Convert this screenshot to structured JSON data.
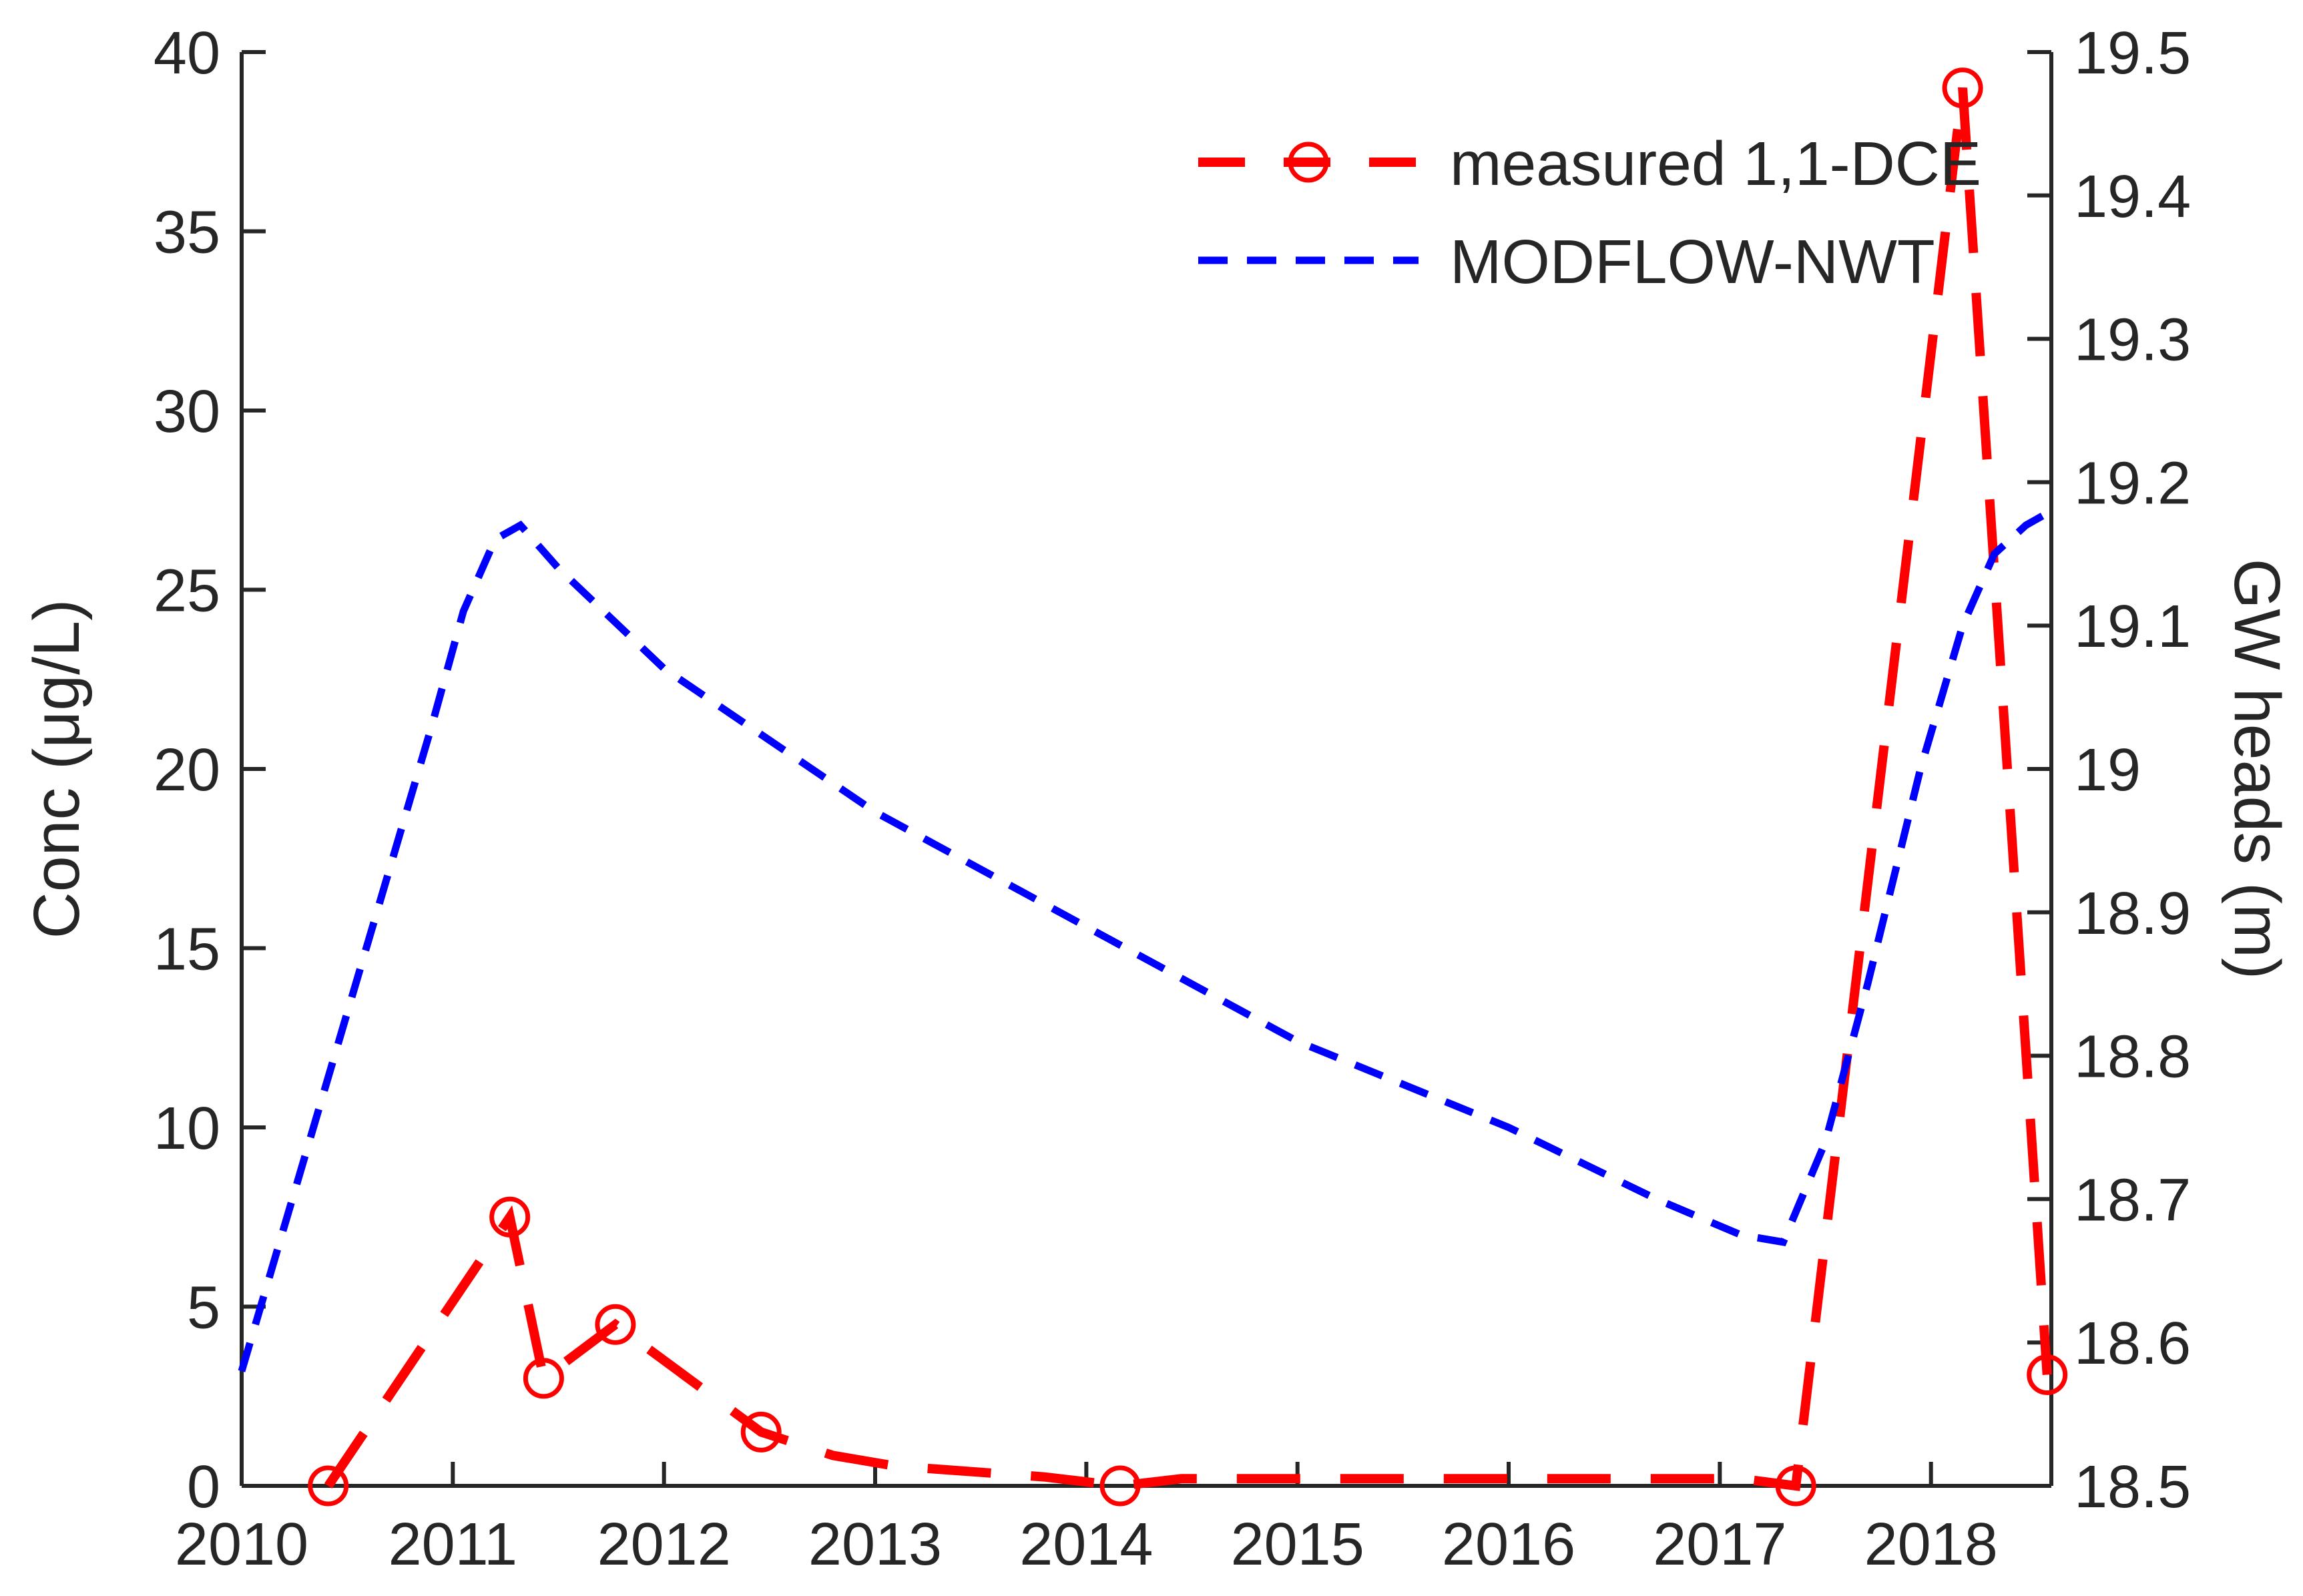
{
  "chart_data": {
    "type": "line",
    "title": "",
    "x_axis": {
      "label": "",
      "range": [
        2010,
        2018.57
      ],
      "ticks": [
        2010,
        2011,
        2012,
        2013,
        2014,
        2015,
        2016,
        2017,
        2018
      ],
      "tick_labels": [
        "2010",
        "2011",
        "2012",
        "2013",
        "2014",
        "2015",
        "2016",
        "2017",
        "2018"
      ]
    },
    "y_axis_left": {
      "label": "Conc (μg/L)",
      "range": [
        0,
        40
      ],
      "ticks": [
        0,
        5,
        10,
        15,
        20,
        25,
        30,
        35,
        40
      ],
      "tick_labels": [
        "0",
        "5",
        "10",
        "15",
        "20",
        "25",
        "30",
        "35",
        "40"
      ]
    },
    "y_axis_right": {
      "label": "GW heads (m)",
      "range": [
        18.5,
        19.5
      ],
      "ticks": [
        18.5,
        18.6,
        18.7,
        18.8,
        18.9,
        19.0,
        19.1,
        19.2,
        19.3,
        19.4,
        19.5
      ],
      "tick_labels": [
        "18.5",
        "18.6",
        "18.7",
        "18.8",
        "18.9",
        "19",
        "19.1",
        "19.2",
        "19.3",
        "19.4",
        "19.5"
      ]
    },
    "series": [
      {
        "name": "measured 1,1-DCE",
        "axis": "left",
        "color": "#ff0000",
        "line_style": "dashed",
        "marker": "circle",
        "points": [
          [
            2010.41,
            0
          ],
          [
            2011.27,
            7.5
          ],
          [
            2011.43,
            3.0
          ],
          [
            2011.77,
            4.5
          ],
          [
            2012.46,
            1.5
          ],
          [
            2014.16,
            0
          ],
          [
            2017.36,
            0
          ],
          [
            2018.15,
            39
          ],
          [
            2018.55,
            3.1
          ]
        ],
        "draw_path": [
          [
            2010.41,
            0
          ],
          [
            2011.27,
            7.5
          ],
          [
            2011.43,
            3.0
          ],
          [
            2011.77,
            4.5
          ],
          [
            2012.46,
            1.5
          ],
          [
            2012.8,
            0.85
          ],
          [
            2013.1,
            0.55
          ],
          [
            2013.8,
            0.25
          ],
          [
            2014.16,
            0
          ],
          [
            2014.45,
            0.2
          ],
          [
            2017.1,
            0.2
          ],
          [
            2017.36,
            0
          ],
          [
            2018.15,
            39
          ],
          [
            2018.55,
            3.1
          ]
        ]
      },
      {
        "name": "MODFLOW-NWT",
        "axis": "right",
        "color": "#0000ff",
        "line_style": "dashed",
        "marker": "none",
        "points": [
          [
            2010.0,
            18.58
          ],
          [
            2010.3,
            18.73
          ],
          [
            2010.6,
            18.88
          ],
          [
            2010.9,
            19.03
          ],
          [
            2011.05,
            19.11
          ],
          [
            2011.2,
            19.16
          ],
          [
            2011.32,
            19.17
          ],
          [
            2011.5,
            19.14
          ],
          [
            2012.0,
            19.07
          ],
          [
            2013.0,
            18.97
          ],
          [
            2014.0,
            18.89
          ],
          [
            2015.0,
            18.81
          ],
          [
            2016.0,
            18.75
          ],
          [
            2016.7,
            18.7
          ],
          [
            2017.1,
            18.675
          ],
          [
            2017.3,
            18.67
          ],
          [
            2017.5,
            18.74
          ],
          [
            2017.7,
            18.85
          ],
          [
            2017.95,
            19.0
          ],
          [
            2018.15,
            19.1
          ],
          [
            2018.3,
            19.15
          ],
          [
            2018.45,
            19.17
          ],
          [
            2018.57,
            19.18
          ]
        ]
      }
    ],
    "legend": {
      "position": "top-right-inside",
      "entries": [
        "measured 1,1-DCE",
        "MODFLOW-NWT"
      ]
    },
    "colors": {
      "axis": "#262626",
      "measured": "#ff0000",
      "modeled": "#0000ff"
    }
  }
}
